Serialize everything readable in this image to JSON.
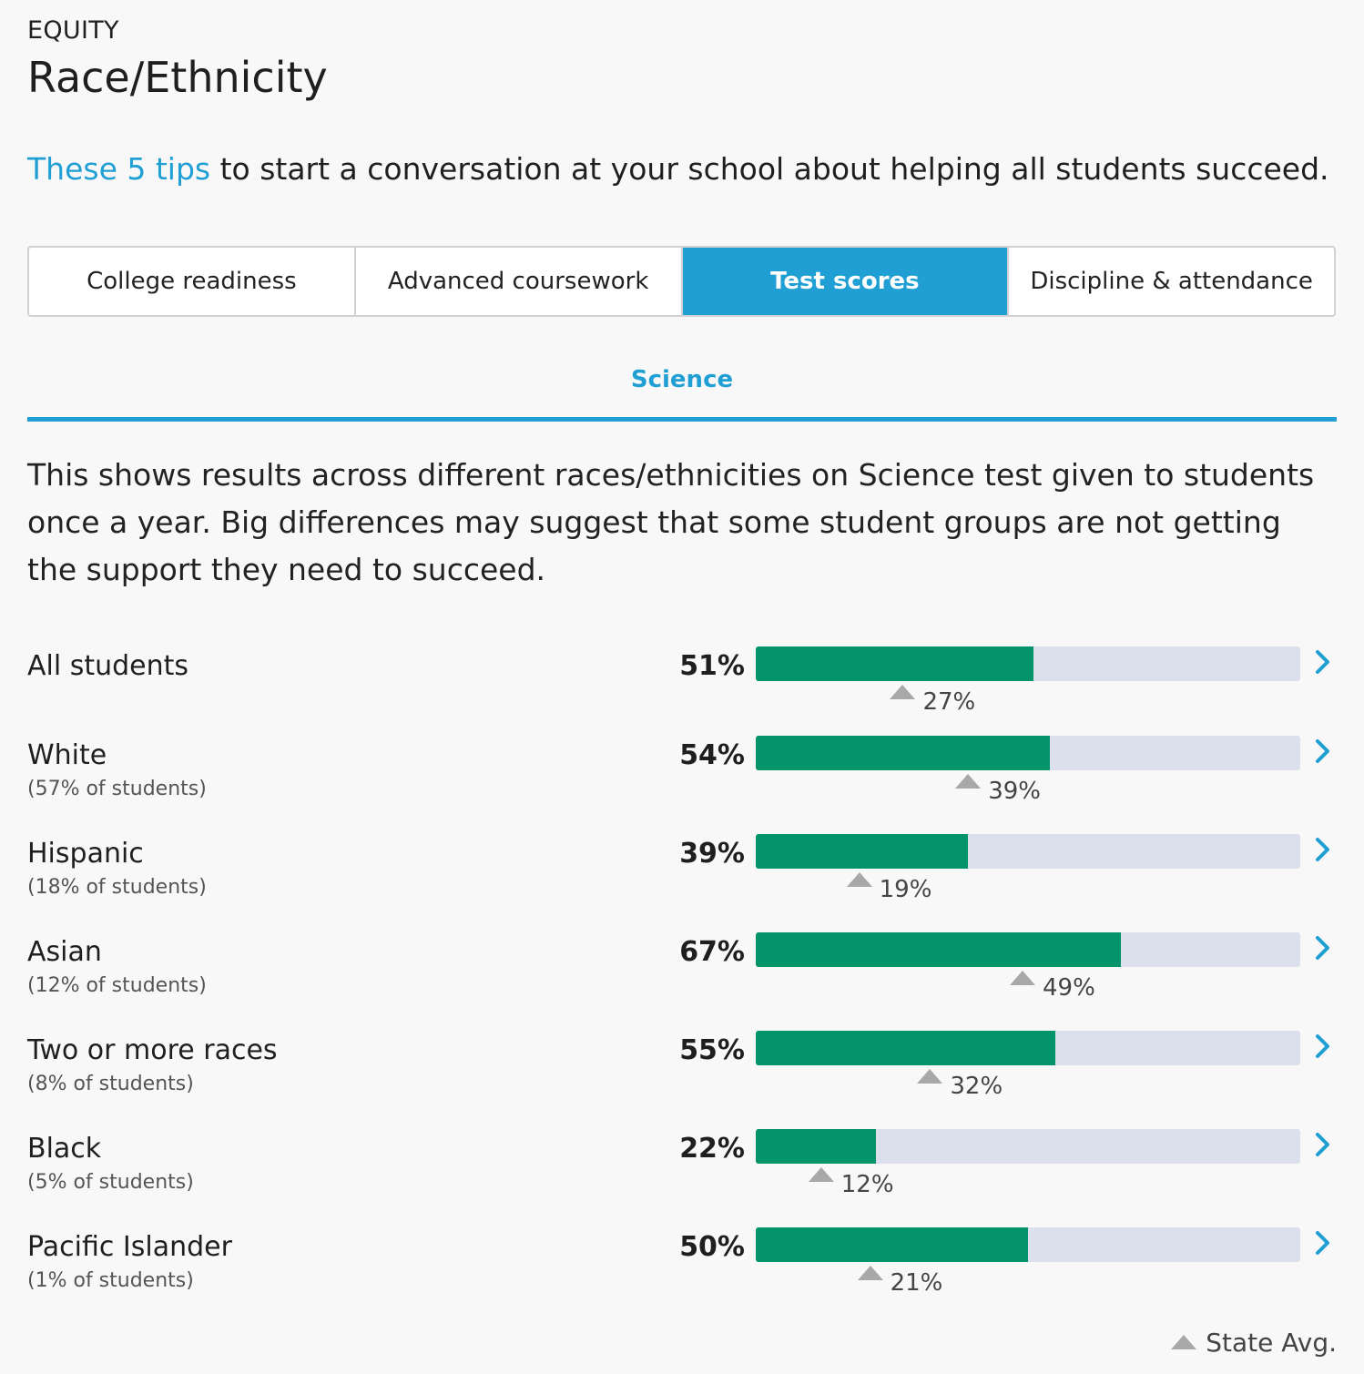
{
  "header": {
    "section_label": "EQUITY",
    "title": "Race/Ethnicity"
  },
  "tips": {
    "link_text": "These 5 tips",
    "rest_text": " to start a conversation at your school about helping all students succeed."
  },
  "tabs": [
    {
      "label": "College readiness",
      "active": false
    },
    {
      "label": "Advanced coursework",
      "active": false
    },
    {
      "label": "Test scores",
      "active": true
    },
    {
      "label": "Discipline & attendance",
      "active": false
    }
  ],
  "subject_tab": "Science",
  "description": "This shows results across different races/ethnicities on Science test given to students once a year. Big differences may suggest that some student groups are not getting the support they need to succeed.",
  "groups": [
    {
      "label": "All students",
      "share": "",
      "score_label": "51%",
      "score": 51,
      "state_label": "27%",
      "state_avg": 27
    },
    {
      "label": "White",
      "share": "(57% of students)",
      "score_label": "54%",
      "score": 54,
      "state_label": "39%",
      "state_avg": 39
    },
    {
      "label": "Hispanic",
      "share": "(18% of students)",
      "score_label": "39%",
      "score": 39,
      "state_label": "19%",
      "state_avg": 19
    },
    {
      "label": "Asian",
      "share": "(12% of students)",
      "score_label": "67%",
      "score": 67,
      "state_label": "49%",
      "state_avg": 49
    },
    {
      "label": "Two or more races",
      "share": "(8% of students)",
      "score_label": "55%",
      "score": 55,
      "state_label": "32%",
      "state_avg": 32
    },
    {
      "label": "Black",
      "share": "(5% of students)",
      "score_label": "22%",
      "score": 22,
      "state_label": "12%",
      "state_avg": 12
    },
    {
      "label": "Pacific Islander",
      "share": "(1% of students)",
      "score_label": "50%",
      "score": 50,
      "state_label": "21%",
      "state_avg": 21
    }
  ],
  "legend": {
    "icon": "triangle-up-icon",
    "label": "State Avg."
  },
  "colors": {
    "accent": "#1f9fd4",
    "bar_fill": "#03946a",
    "bar_track": "#dcdfec",
    "state_marker": "#a8a8a8"
  }
}
